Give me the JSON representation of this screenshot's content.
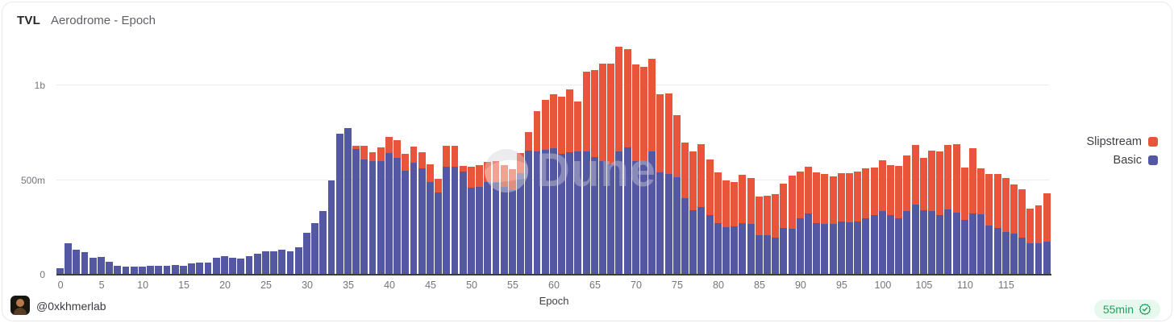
{
  "header": {
    "title": "TVL",
    "subtitle": "Aerodrome - Epoch"
  },
  "legend": [
    {
      "label": "Slipstream",
      "color": "#e8553a"
    },
    {
      "label": "Basic",
      "color": "#5458a2"
    }
  ],
  "watermark": {
    "text": "Dune"
  },
  "footer": {
    "handle": "@0xkhmerlab",
    "avatar_icon": "profile-avatar",
    "refresh_label": "55min",
    "refresh_icon": "badge-check-icon",
    "refresh_color": "#1ea05f"
  },
  "chart_data": {
    "type": "bar",
    "stacked": true,
    "title": "TVL Aerodrome - Epoch",
    "xlabel": "Epoch",
    "ylabel": "",
    "units": "USD, m = millions, b = billions",
    "ylim": [
      0,
      1242
    ],
    "grid": "horizontal",
    "legend_position": "right",
    "y_ticks": [
      {
        "label": "0",
        "value": 0
      },
      {
        "label": "500m",
        "value": 500
      },
      {
        "label": "1b",
        "value": 1000
      }
    ],
    "x_ticks": [
      0,
      5,
      10,
      15,
      20,
      25,
      30,
      35,
      40,
      45,
      50,
      55,
      60,
      65,
      70,
      75,
      80,
      85,
      90,
      95,
      100,
      105,
      110,
      115
    ],
    "x": [
      0,
      1,
      2,
      3,
      4,
      5,
      6,
      7,
      8,
      9,
      10,
      11,
      12,
      13,
      14,
      15,
      16,
      17,
      18,
      19,
      20,
      21,
      22,
      23,
      24,
      25,
      26,
      27,
      28,
      29,
      30,
      31,
      32,
      33,
      34,
      35,
      36,
      37,
      38,
      39,
      40,
      41,
      42,
      43,
      44,
      45,
      46,
      47,
      48,
      49,
      50,
      51,
      52,
      53,
      54,
      55,
      56,
      57,
      58,
      59,
      60,
      61,
      62,
      63,
      64,
      65,
      66,
      67,
      68,
      69,
      70,
      71,
      72,
      73,
      74,
      75,
      76,
      77,
      78,
      79,
      80,
      81,
      82,
      83,
      84,
      85,
      86,
      87,
      88,
      89,
      90,
      91,
      92,
      93,
      94,
      95,
      96,
      97,
      98,
      99,
      100,
      101,
      102,
      103,
      104,
      105,
      106,
      107,
      108,
      109,
      110,
      111,
      112,
      113,
      114,
      115,
      116,
      117,
      118,
      119,
      120
    ],
    "series": [
      {
        "name": "Basic",
        "color": "#5458a2",
        "values": [
          35,
          165,
          133,
          118,
          90,
          95,
          68,
          48,
          44,
          43,
          44,
          46,
          45,
          48,
          52,
          49,
          60,
          65,
          64,
          91,
          96,
          91,
          86,
          96,
          111,
          122,
          125,
          134,
          122,
          144,
          223,
          273,
          338,
          496,
          745,
          774,
          662,
          609,
          599,
          602,
          641,
          616,
          551,
          592,
          563,
          491,
          434,
          570,
          570,
          545,
          458,
          465,
          491,
          489,
          465,
          447,
          537,
          655,
          652,
          659,
          670,
          638,
          648,
          652,
          652,
          621,
          598,
          583,
          652,
          674,
          598,
          598,
          652,
          540,
          534,
          516,
          404,
          339,
          358,
          317,
          274,
          253,
          257,
          272,
          267,
          207,
          210,
          195,
          246,
          243,
          300,
          322,
          272,
          267,
          267,
          282,
          276,
          283,
          300,
          315,
          336,
          317,
          296,
          336,
          372,
          339,
          336,
          315,
          346,
          329,
          289,
          322,
          318,
          260,
          246,
          224,
          217,
          195,
          164,
          168,
          174
        ]
      },
      {
        "name": "Slipstream",
        "color": "#e8553a",
        "values": [
          0,
          0,
          0,
          0,
          0,
          0,
          0,
          0,
          0,
          0,
          0,
          0,
          0,
          0,
          0,
          0,
          0,
          0,
          0,
          0,
          0,
          0,
          0,
          0,
          0,
          0,
          0,
          0,
          0,
          0,
          0,
          0,
          0,
          0,
          0,
          0,
          21,
          72,
          49,
          69,
          87,
          96,
          86,
          86,
          86,
          92,
          72,
          110,
          110,
          30,
          111,
          115,
          104,
          109,
          112,
          112,
          104,
          98,
          213,
          263,
          284,
          304,
          332,
          262,
          420,
          462,
          515,
          530,
          553,
          517,
          511,
          500,
          489,
          414,
          423,
          326,
          294,
          313,
          330,
          292,
          266,
          244,
          233,
          254,
          244,
          204,
          205,
          230,
          237,
          280,
          245,
          247,
          268,
          266,
          252,
          255,
          261,
          262,
          263,
          251,
          269,
          263,
          277,
          295,
          312,
          280,
          319,
          337,
          338,
          359,
          277,
          348,
          245,
          274,
          284,
          285,
          259,
          256,
          187,
          197,
          258
        ]
      }
    ]
  }
}
